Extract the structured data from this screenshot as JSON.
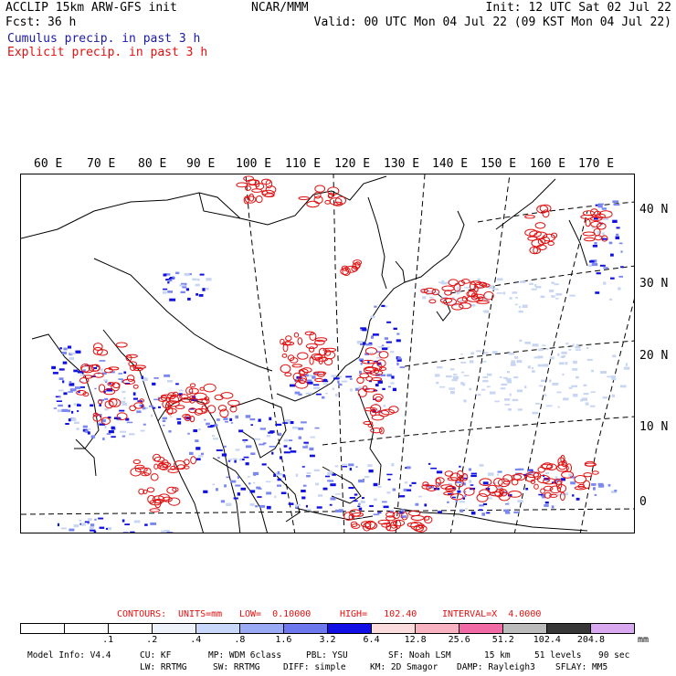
{
  "header": {
    "model_title": "ACCLIP 15km ARW-GFS init",
    "forecast_label": "Fcst:",
    "forecast_hours": "36 h",
    "center": "NCAR/MMM",
    "init": "Init: 12 UTC Sat 02 Jul 22",
    "valid": "Valid: 00 UTC Mon 04 Jul 22 (09 KST Mon 04 Jul 22)",
    "legend_cumulus": "Cumulus precip. in past 3 h",
    "legend_explicit": "Explicit precip. in past 3 h"
  },
  "colors": {
    "cumulus": "#1a1aa8",
    "explicit": "#e01010",
    "cumulus_fill_light": "#c8d6f2",
    "cumulus_fill_mid": "#7a88f0",
    "cumulus_fill_dark": "#1010e0"
  },
  "map": {
    "lon_labels": [
      "60 E",
      "70 E",
      "80 E",
      "90 E",
      "100 E",
      "110 E",
      "120 E",
      "130 E",
      "140 E",
      "150 E",
      "160 E",
      "170 E"
    ],
    "lat_labels": [
      "40 N",
      "30 N",
      "20 N",
      "10 N",
      "0"
    ]
  },
  "contours_line": {
    "label": "CONTOURS:",
    "units": "UNITS=mm",
    "low": "LOW=  0.10000",
    "high": "HIGH=   102.40",
    "interval": "INTERVAL=X  4.0000"
  },
  "colorbar": {
    "labels": [
      ".1",
      ".2",
      ".4",
      ".8",
      "1.6",
      "3.2",
      "6.4",
      "12.8",
      "25.6",
      "51.2",
      "102.4",
      "204.8"
    ],
    "unit": "mm",
    "colors": [
      "#ffffff",
      "#ffffff",
      "#ffffff",
      "#eef2fb",
      "#c8d8fa",
      "#9aaaf5",
      "#6e78ee",
      "#1010e6",
      "#fadcdc",
      "#f7b4c0",
      "#f06aa6",
      "#bcbcbc",
      "#383838",
      "#d8a8f0"
    ]
  },
  "footer": {
    "model_info": "Model Info: V4.4",
    "cu": "CU: KF",
    "mp": "MP: WDM 6class",
    "pbl": "PBL: YSU",
    "sf": "SF: Noah LSM",
    "res": "15 km",
    "levels": "51 levels",
    "dt": "90 sec",
    "lw": "LW: RRTMG",
    "sw": "SW: RRTMG",
    "diff": "DIFF: simple",
    "km": "KM: 2D Smagor",
    "damp": "DAMP: Rayleigh3",
    "sflay": "SFLAY: MM5"
  }
}
